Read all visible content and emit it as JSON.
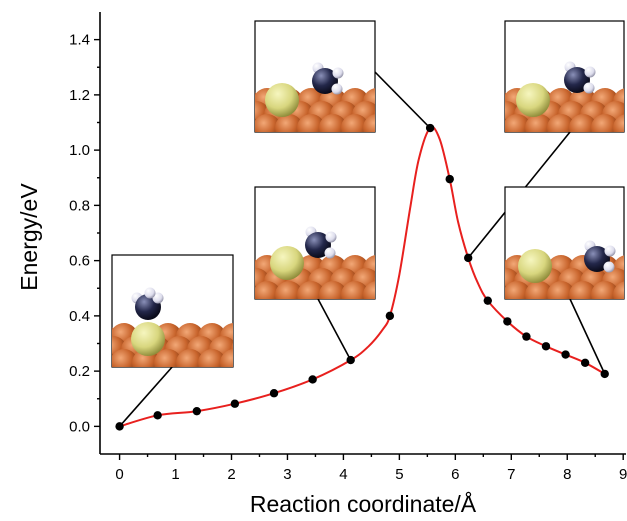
{
  "chart_data": {
    "type": "line",
    "xlabel": "Reaction coordinate/Å",
    "ylabel": "Energy/eV",
    "xlim": [
      -0.35,
      9.05
    ],
    "ylim": [
      -0.1,
      1.5
    ],
    "xticks": [
      0,
      1,
      2,
      3,
      4,
      5,
      6,
      7,
      8,
      9
    ],
    "yticks": [
      0.0,
      0.2,
      0.4,
      0.6,
      0.8,
      1.0,
      1.2,
      1.4
    ],
    "grid": false,
    "colors": {
      "curve": "#e8201e",
      "points": "#000000"
    },
    "points": [
      [
        0.0,
        0.0
      ],
      [
        0.68,
        0.04
      ],
      [
        1.38,
        0.055
      ],
      [
        2.06,
        0.082
      ],
      [
        2.76,
        0.12
      ],
      [
        3.45,
        0.17
      ],
      [
        4.13,
        0.24
      ],
      [
        4.83,
        0.4
      ],
      [
        5.55,
        1.08
      ],
      [
        5.9,
        0.895
      ],
      [
        6.23,
        0.61
      ],
      [
        6.58,
        0.455
      ],
      [
        6.93,
        0.38
      ],
      [
        7.27,
        0.325
      ],
      [
        7.62,
        0.29
      ],
      [
        7.97,
        0.26
      ],
      [
        8.32,
        0.23
      ],
      [
        8.67,
        0.19
      ]
    ],
    "curve": [
      [
        0.0,
        0.0
      ],
      [
        0.68,
        0.04
      ],
      [
        1.38,
        0.055
      ],
      [
        2.06,
        0.082
      ],
      [
        2.76,
        0.12
      ],
      [
        3.45,
        0.17
      ],
      [
        4.13,
        0.24
      ],
      [
        4.45,
        0.29
      ],
      [
        4.7,
        0.35
      ],
      [
        4.83,
        0.4
      ],
      [
        5.0,
        0.55
      ],
      [
        5.2,
        0.8
      ],
      [
        5.35,
        0.97
      ],
      [
        5.55,
        1.08
      ],
      [
        5.72,
        1.04
      ],
      [
        5.9,
        0.895
      ],
      [
        6.05,
        0.74
      ],
      [
        6.23,
        0.61
      ],
      [
        6.4,
        0.52
      ],
      [
        6.58,
        0.455
      ],
      [
        6.93,
        0.38
      ],
      [
        7.27,
        0.325
      ],
      [
        7.62,
        0.29
      ],
      [
        7.97,
        0.26
      ],
      [
        8.32,
        0.23
      ],
      [
        8.67,
        0.19
      ]
    ],
    "annotations": [
      {
        "name": "initial-state",
        "point_index": 0
      },
      {
        "name": "intermediate-1",
        "point_index": 6
      },
      {
        "name": "transition-state",
        "point_index": 8
      },
      {
        "name": "intermediate-2",
        "point_index": 10
      },
      {
        "name": "final-state",
        "point_index": 17
      }
    ]
  }
}
